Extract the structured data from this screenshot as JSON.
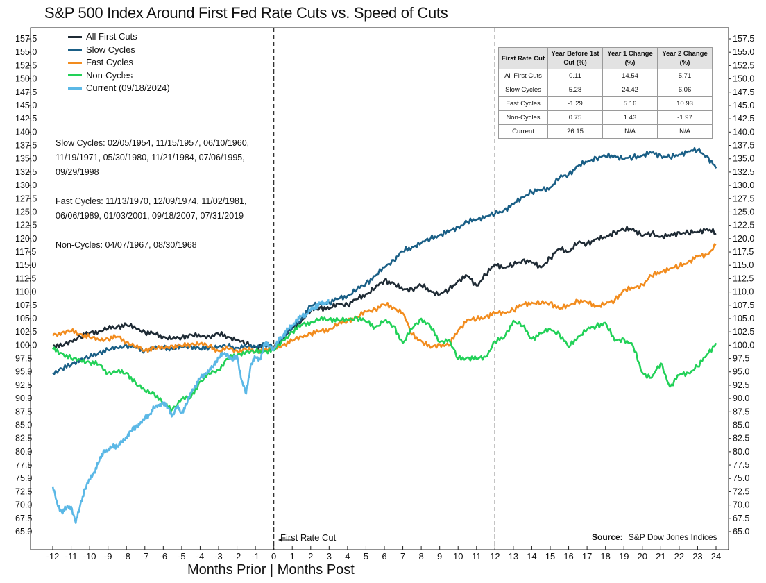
{
  "title": "S&P 500 Index Around First Fed Rate Cuts vs. Speed of Cuts",
  "x_axis_title": "Months Prior | Months Post",
  "first_cut_annotation": "First Rate Cut",
  "source": {
    "label": "Source:",
    "value": "S&P Dow Jones Indices"
  },
  "colors": {
    "all_first_cuts": "#1f2b35",
    "slow_cycles": "#1a5f86",
    "fast_cycles": "#f28c1e",
    "non_cycles": "#22d158",
    "current": "#5bb8e6"
  },
  "notes": [
    "Slow Cycles: 02/05/1954, 11/15/1957, 06/10/1960, 11/19/1971, 05/30/1980, 11/21/1984, 07/06/1995, 09/29/1998",
    "Fast Cycles: 11/13/1970, 12/09/1974, 11/02/1981, 06/06/1989, 01/03/2001, 09/18/2007, 07/31/2019",
    "Non-Cycles: 04/07/1967, 08/30/1968"
  ],
  "table": {
    "headers": [
      "First Rate Cut",
      "Year Before 1st Cut (%)",
      "Year 1 Change (%)",
      "Year 2 Change (%)"
    ],
    "rows": [
      [
        "All First Cuts",
        "0.11",
        "14.54",
        "5.71"
      ],
      [
        "Slow Cycles",
        "5.28",
        "24.42",
        "6.06"
      ],
      [
        "Fast Cycles",
        "-1.29",
        "5.16",
        "10.93"
      ],
      [
        "Non-Cycles",
        "0.75",
        "1.43",
        "-1.97"
      ],
      [
        "Current",
        "26.15",
        "N/A",
        "N/A"
      ]
    ]
  },
  "chart_data": {
    "type": "line",
    "title": "S&P 500 Index Around First Fed Rate Cuts vs. Speed of Cuts",
    "xlabel": "Months Prior | Months Post",
    "ylabel": "",
    "xlim": [
      -12,
      24
    ],
    "ylim": [
      62.5,
      160
    ],
    "x_ticks": [
      "-12",
      "-11",
      "-10",
      "-9",
      "-8",
      "-7",
      "-6",
      "-5",
      "-4",
      "-3",
      "-2",
      "-1",
      "0",
      "1",
      "2",
      "3",
      "4",
      "5",
      "6",
      "7",
      "8",
      "9",
      "10",
      "11",
      "12",
      "13",
      "14",
      "15",
      "16",
      "17",
      "18",
      "19",
      "20",
      "21",
      "22",
      "23",
      "24"
    ],
    "y_ticks": [
      "157.5",
      "155.0",
      "152.5",
      "150.0",
      "147.5",
      "145.0",
      "142.5",
      "140.0",
      "137.5",
      "135.0",
      "132.5",
      "130.0",
      "127.5",
      "125.0",
      "122.5",
      "120.0",
      "117.5",
      "115.0",
      "112.5",
      "110.0",
      "107.5",
      "105.0",
      "102.5",
      "100.0",
      "97.5",
      "95.0",
      "92.5",
      "90.0",
      "87.5",
      "85.0",
      "82.5",
      "80.0",
      "77.5",
      "75.0",
      "72.5",
      "70.0",
      "67.5",
      "65.0"
    ],
    "vertical_lines": [
      0,
      12
    ],
    "legend_position": "top-left",
    "series": [
      {
        "name": "All First Cuts",
        "color_key": "all_first_cuts",
        "x": [
          -12,
          -11.5,
          -11,
          -10.5,
          -10,
          -9.5,
          -9,
          -8.5,
          -8,
          -7.5,
          -7,
          -6.5,
          -6,
          -5.5,
          -5,
          -4.5,
          -4,
          -3.5,
          -3,
          -2.5,
          -2,
          -1.5,
          -1,
          -0.5,
          0,
          0.5,
          1,
          1.5,
          2,
          2.5,
          3,
          3.5,
          4,
          4.5,
          5,
          5.5,
          6,
          6.5,
          7,
          7.5,
          8,
          8.5,
          9,
          9.5,
          10,
          10.5,
          11,
          11.5,
          12,
          12.5,
          13,
          13.5,
          14,
          14.5,
          15,
          15.5,
          16,
          16.5,
          17,
          17.5,
          18,
          18.5,
          19,
          19.5,
          20,
          20.5,
          21,
          21.5,
          22,
          22.5,
          23,
          23.5,
          24
        ],
        "y": [
          100,
          99.8,
          100.8,
          101.6,
          102.3,
          102.6,
          103.1,
          103.5,
          103.8,
          103.2,
          102.5,
          102.1,
          101.6,
          101.2,
          101.4,
          102.0,
          101.6,
          101.7,
          102.1,
          101.6,
          101.0,
          100.2,
          99.6,
          99.9,
          99.4,
          101.4,
          103.2,
          104.6,
          106.4,
          107.1,
          106.8,
          107.8,
          107.6,
          108.6,
          109.6,
          110.7,
          112.2,
          111.6,
          110.4,
          110.6,
          111.2,
          110.2,
          109.5,
          110.4,
          112.1,
          113.0,
          111.2,
          113.2,
          115.2,
          114.6,
          115.0,
          116.0,
          115.5,
          114.6,
          116.4,
          118.1,
          117.6,
          119.2,
          119.1,
          119.9,
          120.2,
          121.3,
          121.6,
          121.9,
          120.5,
          121.0,
          120.4,
          120.5,
          121.2,
          121.0,
          121.3,
          121.8,
          121.0
        ]
      },
      {
        "name": "Slow Cycles",
        "color_key": "slow_cycles",
        "x": [
          -12,
          -11.5,
          -11,
          -10.5,
          -10,
          -9.5,
          -9,
          -8.5,
          -8,
          -7.5,
          -7,
          -6.5,
          -6,
          -5.5,
          -5,
          -4.5,
          -4,
          -3.5,
          -3,
          -2.5,
          -2,
          -1.5,
          -1,
          -0.5,
          0,
          0.5,
          1,
          1.5,
          2,
          2.5,
          3,
          3.5,
          4,
          4.5,
          5,
          5.5,
          6,
          6.5,
          7,
          7.5,
          8,
          8.5,
          9,
          9.5,
          10,
          10.5,
          11,
          11.5,
          12,
          12.5,
          13,
          13.5,
          14,
          14.5,
          15,
          15.5,
          16,
          16.5,
          17,
          17.5,
          18,
          18.5,
          19,
          19.5,
          20,
          20.5,
          21,
          21.5,
          22,
          22.5,
          23,
          23.5,
          24
        ],
        "y": [
          94.8,
          95.6,
          96.3,
          97.4,
          97.7,
          98.6,
          99.1,
          99.5,
          100.0,
          99.5,
          99.0,
          99.4,
          99.6,
          99.3,
          99.6,
          99.9,
          99.2,
          99.6,
          99.7,
          99.8,
          99.5,
          99.7,
          99.8,
          100.1,
          99.7,
          101.5,
          103.2,
          105.0,
          107.4,
          107.7,
          108.0,
          108.7,
          109.3,
          110.4,
          111.6,
          113.0,
          114.6,
          116.0,
          117.6,
          118.4,
          119.2,
          120.0,
          120.7,
          121.3,
          122.2,
          123.1,
          123.6,
          124.2,
          124.6,
          125.4,
          126.4,
          127.8,
          128.8,
          129.1,
          129.6,
          131.4,
          132.1,
          133.6,
          134.4,
          135.2,
          135.4,
          135.6,
          134.9,
          135.3,
          135.6,
          136.1,
          135.6,
          135.2,
          135.8,
          136.4,
          136.6,
          135.5,
          133.2
        ]
      },
      {
        "name": "Fast Cycles",
        "color_key": "fast_cycles",
        "x": [
          -12,
          -11.5,
          -11,
          -10.5,
          -10,
          -9.5,
          -9,
          -8.5,
          -8,
          -7.5,
          -7,
          -6.5,
          -6,
          -5.5,
          -5,
          -4.5,
          -4,
          -3.5,
          -3,
          -2.5,
          -2,
          -1.5,
          -1,
          -0.5,
          0,
          0.5,
          1,
          1.5,
          2,
          2.5,
          3,
          3.5,
          4,
          4.5,
          5,
          5.5,
          6,
          6.5,
          7,
          7.5,
          8,
          8.5,
          9,
          9.5,
          10,
          10.5,
          11,
          11.5,
          12,
          12.5,
          13,
          13.5,
          14,
          14.5,
          15,
          15.5,
          16,
          16.5,
          17,
          17.5,
          18,
          18.5,
          19,
          19.5,
          20,
          20.5,
          21,
          21.5,
          22,
          22.5,
          23,
          23.5,
          24
        ],
        "y": [
          101.8,
          102.4,
          102.6,
          102.1,
          101.5,
          101.0,
          101.2,
          101.6,
          100.6,
          99.7,
          99.0,
          99.5,
          99.4,
          99.9,
          99.8,
          100.2,
          100.3,
          99.8,
          98.9,
          99.4,
          98.9,
          99.2,
          98.8,
          99.2,
          99.3,
          100.1,
          100.8,
          101.6,
          102.2,
          102.6,
          103.0,
          103.9,
          104.6,
          105.2,
          106.3,
          106.8,
          107.6,
          107.1,
          106.0,
          102.0,
          100.8,
          99.5,
          100.2,
          99.9,
          102.8,
          104.8,
          104.8,
          105.4,
          106.0,
          106.1,
          106.6,
          107.6,
          108.0,
          107.8,
          108.0,
          106.8,
          107.4,
          108.4,
          108.0,
          107.4,
          107.7,
          108.4,
          110.4,
          110.6,
          111.4,
          113.0,
          113.8,
          114.4,
          114.8,
          115.7,
          116.6,
          117.0,
          118.8
        ]
      },
      {
        "name": "Non-Cycles",
        "color_key": "non_cycles",
        "x": [
          -12,
          -11.5,
          -11,
          -10.5,
          -10,
          -9.5,
          -9,
          -8.5,
          -8,
          -7.5,
          -7,
          -6.5,
          -6,
          -5.5,
          -5,
          -4.5,
          -4,
          -3.5,
          -3,
          -2.5,
          -2,
          -1.5,
          -1,
          -0.5,
          0,
          0.5,
          1,
          1.5,
          2,
          2.5,
          3,
          3.5,
          4,
          4.5,
          5,
          5.5,
          6,
          6.5,
          7,
          7.5,
          8,
          8.5,
          9,
          9.5,
          10,
          10.5,
          11,
          11.5,
          12,
          12.5,
          13,
          13.5,
          14,
          14.5,
          15,
          15.5,
          16,
          16.5,
          17,
          17.5,
          18,
          18.5,
          19,
          19.5,
          20,
          20.5,
          21,
          21.5,
          22,
          22.5,
          23,
          23.5,
          24
        ],
        "y": [
          99.2,
          98.5,
          97.5,
          97.2,
          96.8,
          96.4,
          94.8,
          95.0,
          94.8,
          92.9,
          91.4,
          91.0,
          89.0,
          88.0,
          89.9,
          90.2,
          93.2,
          94.6,
          95.4,
          97.5,
          98.1,
          98.8,
          98.7,
          98.9,
          99.0,
          100.9,
          102.5,
          103.8,
          104.3,
          104.8,
          104.9,
          104.7,
          104.7,
          105.2,
          104.4,
          103.4,
          104.6,
          103.6,
          100.4,
          103.1,
          105.0,
          103.5,
          100.6,
          101.0,
          97.4,
          97.7,
          97.4,
          97.8,
          100.7,
          101.4,
          104.6,
          103.6,
          101.2,
          102.2,
          103.0,
          102.1,
          99.6,
          101.6,
          102.9,
          103.6,
          104.2,
          100.8,
          101.2,
          99.8,
          94.8,
          93.9,
          96.6,
          92.2,
          94.4,
          94.8,
          96.0,
          98.2,
          100.4
        ]
      },
      {
        "name": "Current (09/18/2024)",
        "color_key": "current",
        "x": [
          -12,
          -11.75,
          -11.5,
          -11.25,
          -11,
          -10.75,
          -10.5,
          -10.25,
          -10,
          -9.75,
          -9.5,
          -9.25,
          -9,
          -8.75,
          -8.5,
          -8.25,
          -8,
          -7.75,
          -7.5,
          -7.25,
          -7,
          -6.75,
          -6.5,
          -6.25,
          -6,
          -5.75,
          -5.5,
          -5.25,
          -5,
          -4.75,
          -4.5,
          -4.25,
          -4,
          -3.75,
          -3.5,
          -3.25,
          -3,
          -2.75,
          -2.5,
          -2.25,
          -2,
          -1.75,
          -1.5,
          -1.25,
          -1,
          -0.75,
          -0.5,
          -0.25,
          0,
          0.25,
          0.5,
          0.75,
          1,
          1.25,
          1.5,
          1.75,
          2,
          2.25,
          2.5,
          2.75,
          3
        ],
        "y": [
          73.5,
          70.2,
          68.6,
          69.5,
          69.7,
          66.6,
          70.1,
          73.0,
          74.8,
          76.2,
          78.0,
          80.1,
          80.2,
          81.0,
          81.1,
          81.7,
          82.8,
          83.9,
          84.6,
          85.4,
          86.2,
          87.0,
          88.2,
          88.8,
          89.2,
          88.2,
          86.8,
          88.4,
          87.3,
          88.8,
          91.1,
          92.4,
          93.8,
          94.6,
          95.2,
          96.3,
          97.7,
          98.3,
          98.3,
          97.1,
          98.1,
          93.4,
          90.9,
          96.4,
          97.7,
          97.3,
          100.4,
          99.8,
          99.3,
          100.8,
          101.8,
          103.0,
          103.6,
          104.8,
          105.4,
          105.8,
          106.6,
          107.1,
          108.0,
          107.6,
          108.4
        ]
      }
    ]
  }
}
